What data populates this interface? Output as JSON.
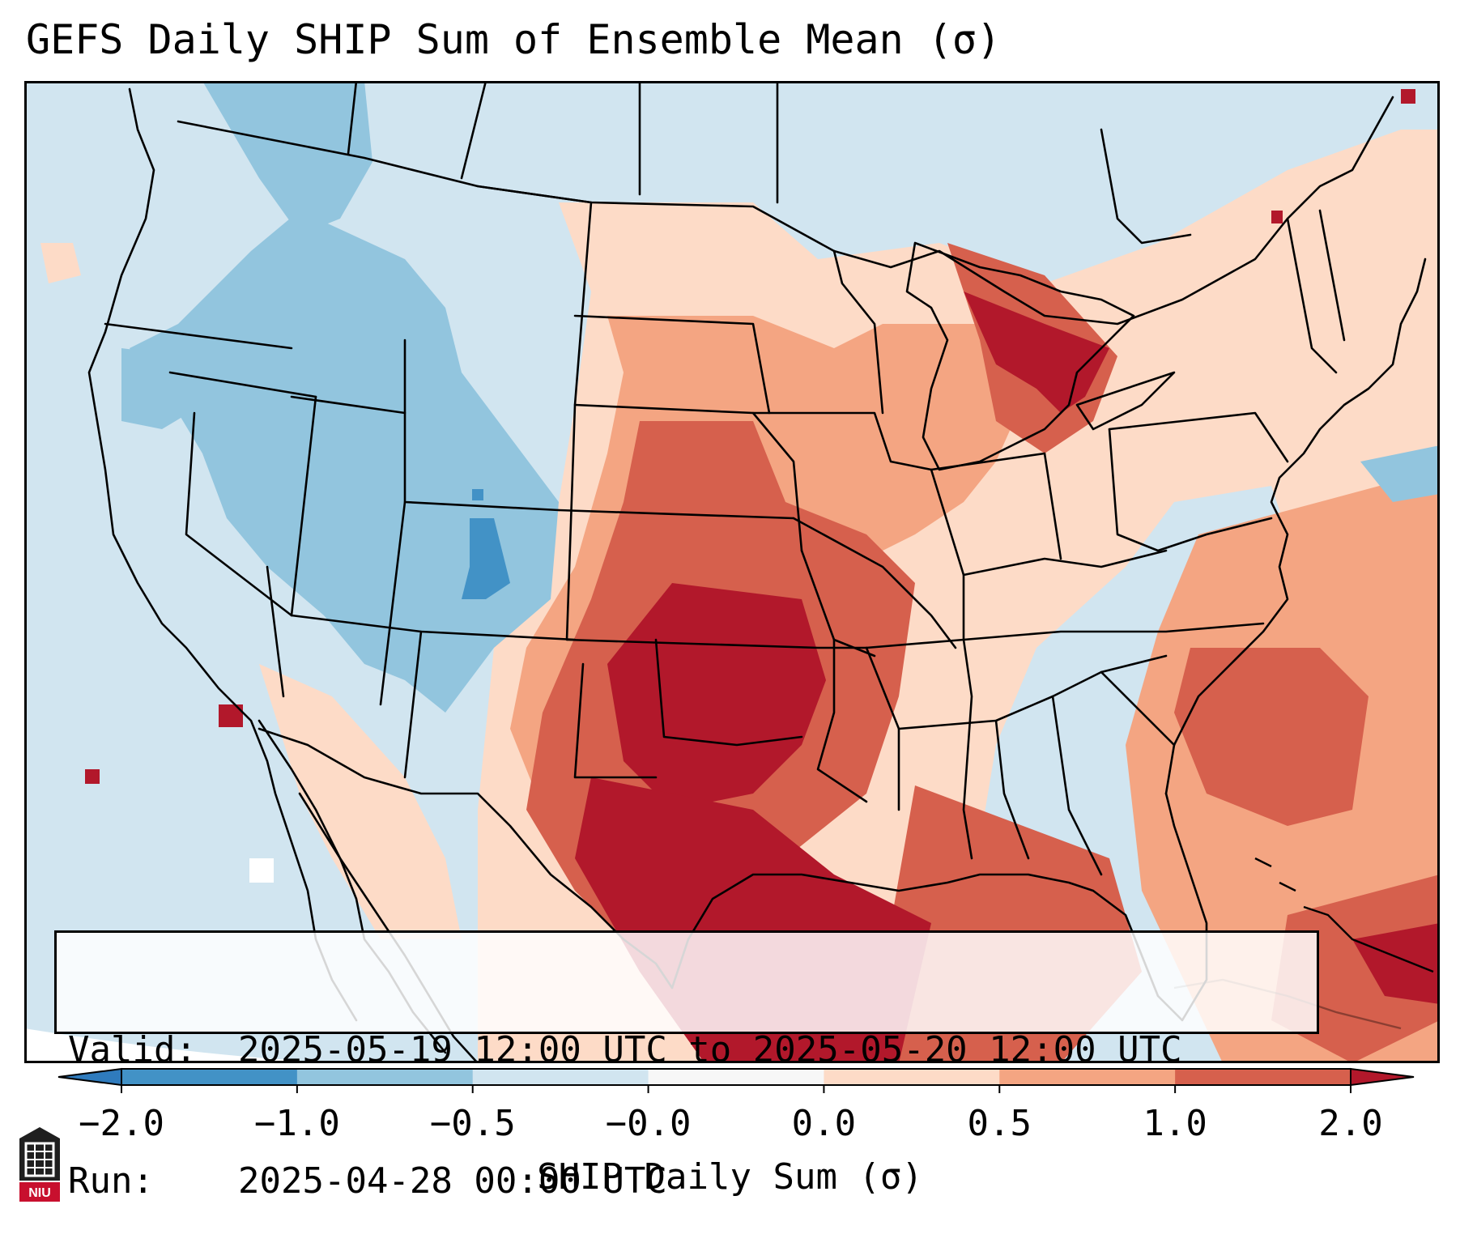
{
  "title": "GEFS Daily SHIP Sum of Ensemble Mean (σ)",
  "info": {
    "valid_label": "Valid:",
    "valid_value": "2025-05-19 12:00 UTC to 2025-05-20 12:00 UTC",
    "run_label": "Run:",
    "run_value": "2025-04-28 00:00 UTC"
  },
  "colorbar": {
    "label": "SHIP Daily Sum (σ)",
    "ticks": [
      "−2.0",
      "−1.0",
      "−0.5",
      "−0.0",
      "0.0",
      "0.5",
      "1.0",
      "2.0"
    ],
    "bins": [
      {
        "range": "< -2.0",
        "color": "#2f7bbd"
      },
      {
        "range": "-2.0 to -1.0",
        "color": "#4292c6"
      },
      {
        "range": "-1.0 to -0.5",
        "color": "#92c5de"
      },
      {
        "range": "-0.5 to -0.0",
        "color": "#d1e5f0"
      },
      {
        "range": "-0.0 to 0.0",
        "color": "#f7f7f7"
      },
      {
        "range": "0.0 to 0.5",
        "color": "#fddbc7"
      },
      {
        "range": "0.5 to 1.0",
        "color": "#f4a582"
      },
      {
        "range": "1.0 to 2.0",
        "color": "#d6604d"
      },
      {
        "range": "> 2.0",
        "color": "#b2182b"
      }
    ],
    "extend": "both"
  },
  "logo": {
    "text": "NIU",
    "icon": "niu-logo-icon"
  }
}
